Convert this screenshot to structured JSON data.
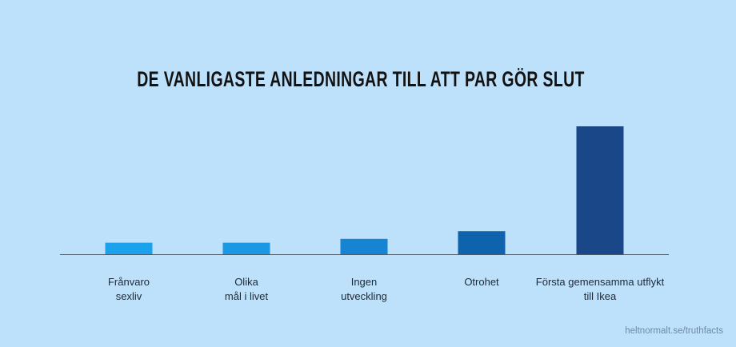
{
  "chart_data": {
    "type": "bar",
    "title": "DE VANLIGASTE ANLEDNINGAR TILL ATT PAR GÖR SLUT",
    "xlabel": "",
    "ylabel": "",
    "categories": [
      "Frånvaro\nsexliv",
      "Olika\nmål i livet",
      "Ingen\nutveckling",
      "Otrohet",
      "Första gemensamma utflykt\ntill Ikea"
    ],
    "values": [
      9,
      9,
      12,
      18,
      100
    ],
    "ylim": [
      0,
      100
    ],
    "bar_colors": [
      "#1aa3ec",
      "#1a98e4",
      "#1584d2",
      "#0f63ac",
      "#1a4787"
    ],
    "grid": false,
    "legend": "none"
  },
  "credit": "heltnormalt.se/truthfacts",
  "colors": {
    "background": "#bde0fb",
    "axis": "#4a5a68"
  }
}
